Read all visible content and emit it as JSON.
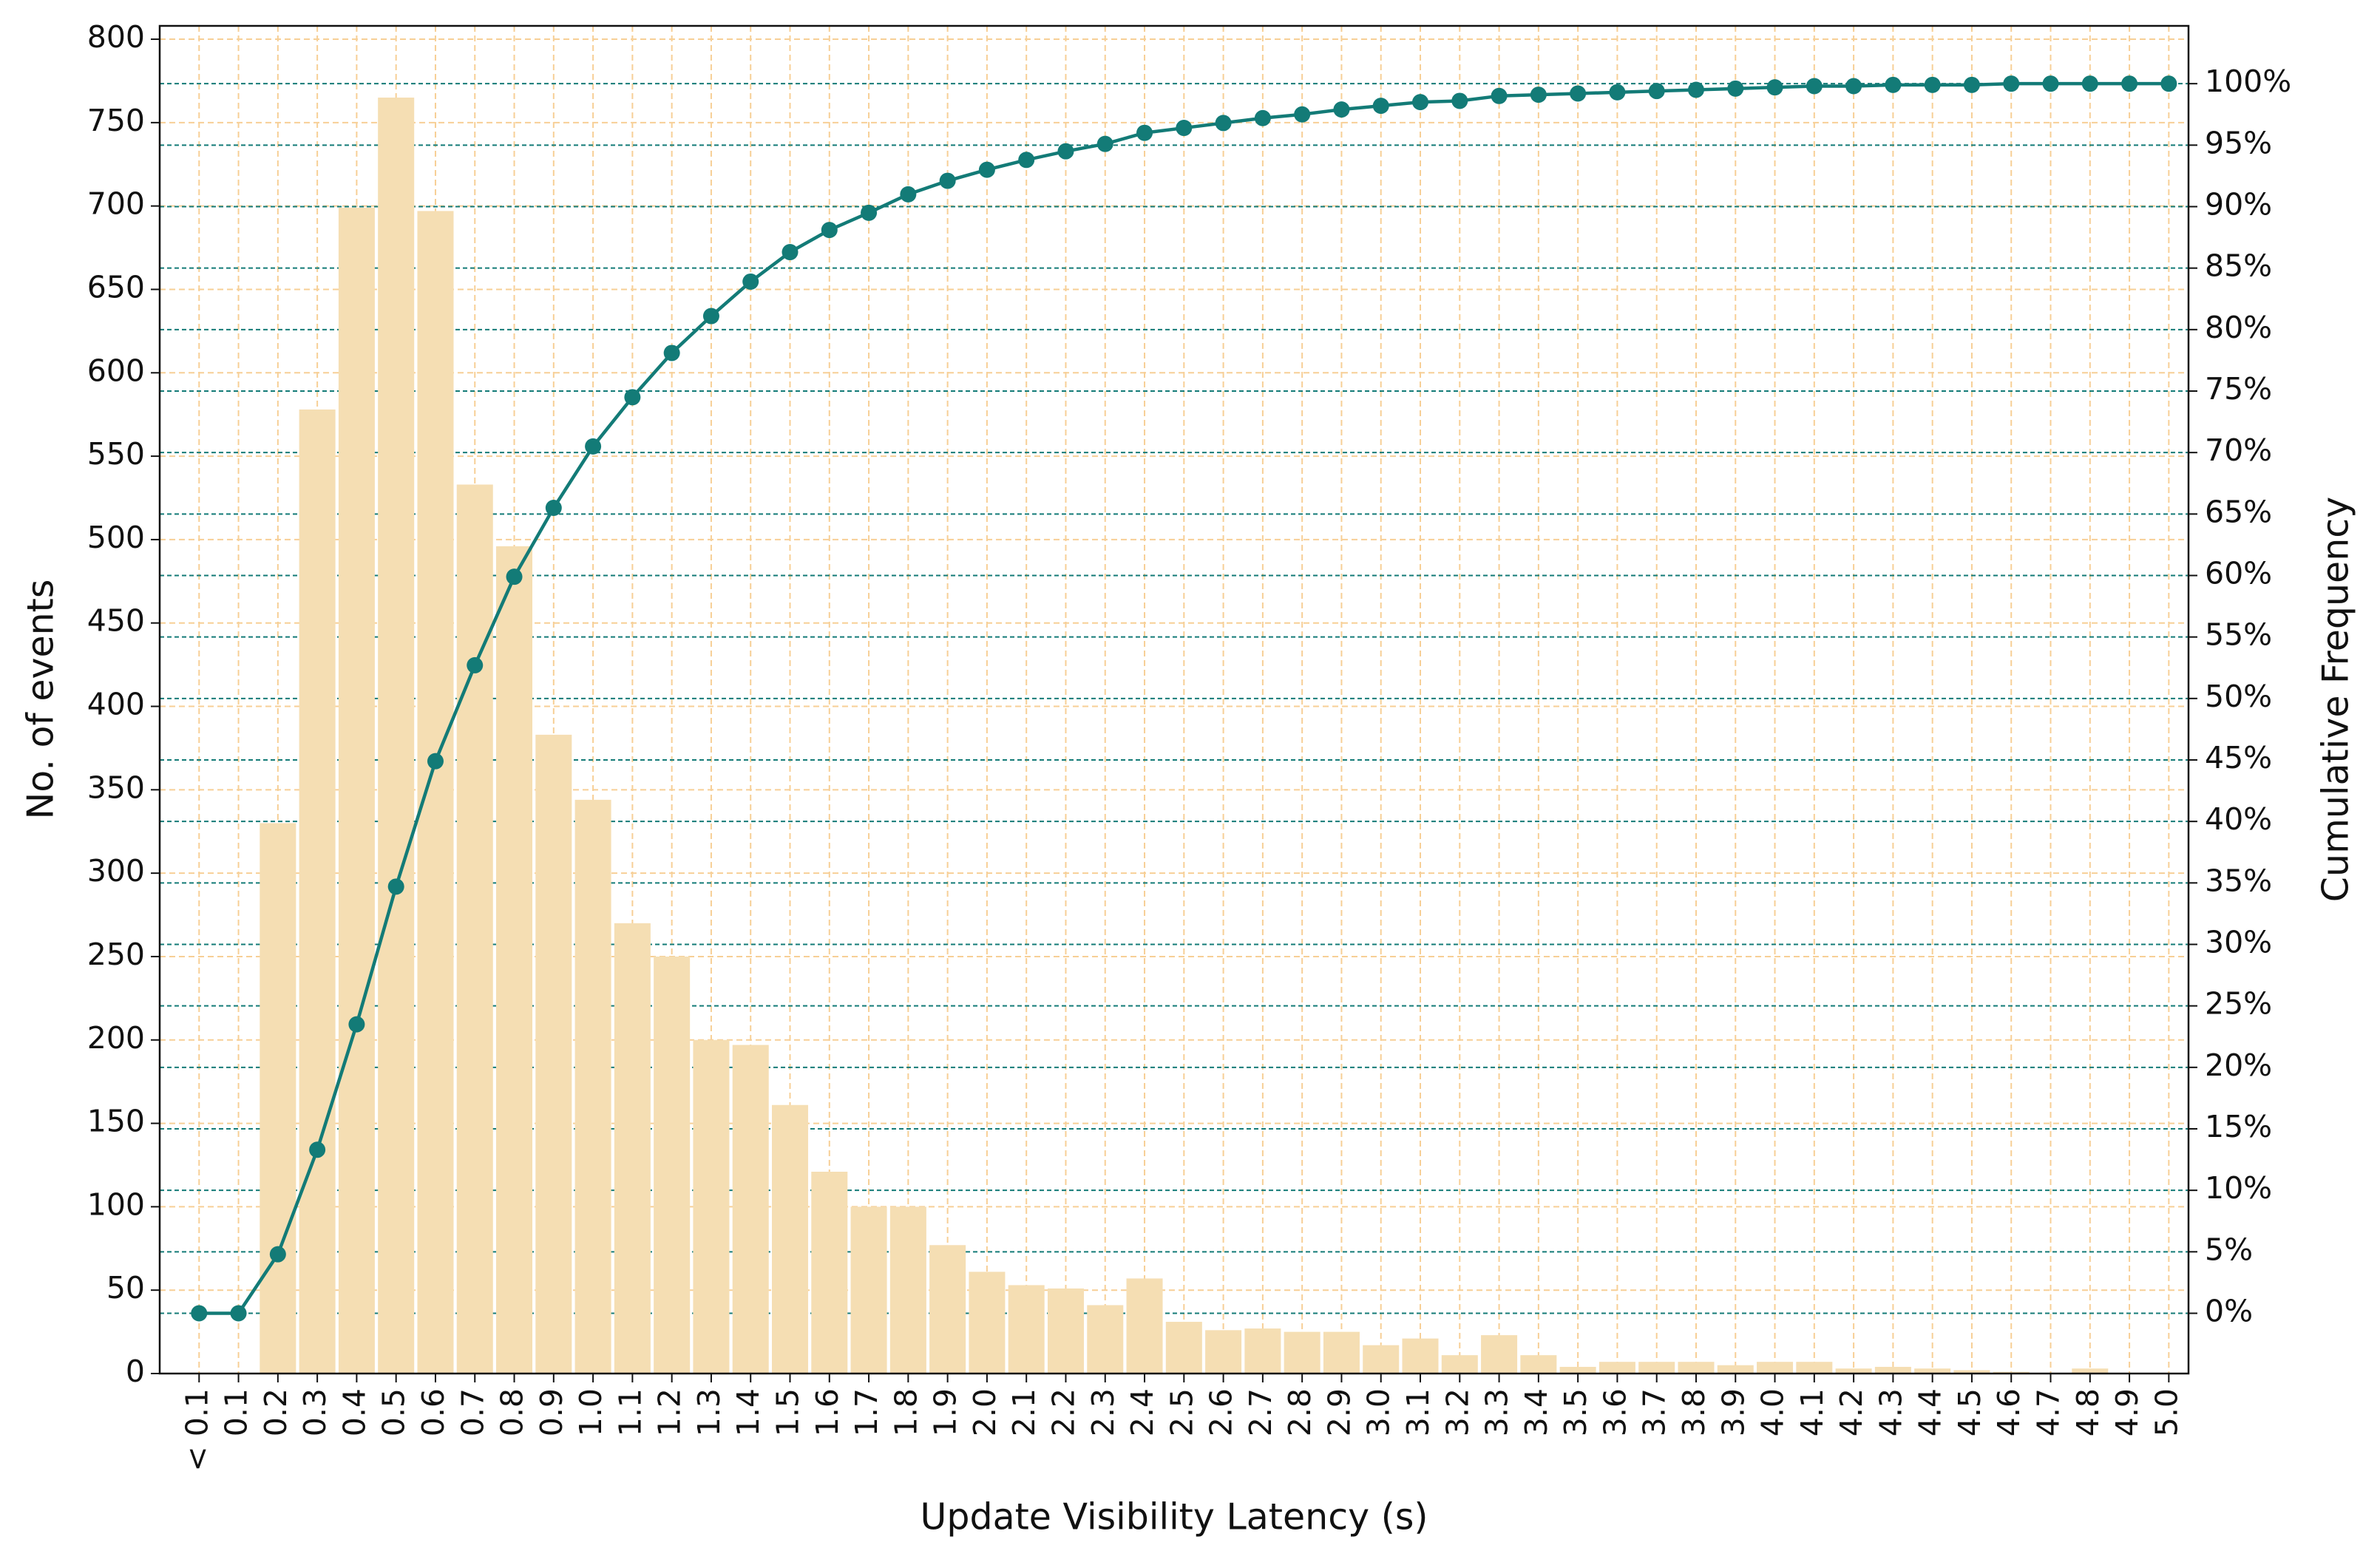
{
  "chart_data": {
    "type": "bar",
    "xlabel": "Update Visibility Latency (s)",
    "ylabel": "No. of events",
    "y2label": "Cumulative Frequency",
    "categories": [
      "< 0.1",
      "0.1",
      "0.2",
      "0.3",
      "0.4",
      "0.5",
      "0.6",
      "0.7",
      "0.8",
      "0.9",
      "1.0",
      "1.1",
      "1.2",
      "1.3",
      "1.4",
      "1.5",
      "1.6",
      "1.7",
      "1.8",
      "1.9",
      "2.0",
      "2.1",
      "2.2",
      "2.3",
      "2.4",
      "2.5",
      "2.6",
      "2.7",
      "2.8",
      "2.9",
      "3.0",
      "3.1",
      "3.2",
      "3.3",
      "3.4",
      "3.5",
      "3.6",
      "3.7",
      "3.8",
      "3.9",
      "4.0",
      "4.1",
      "4.2",
      "4.3",
      "4.4",
      "4.5",
      "4.6",
      "4.7",
      "4.8",
      "4.9",
      "5.0"
    ],
    "series": [
      {
        "type": "bar",
        "color": "#f5deb3",
        "values": [
          0,
          0,
          330,
          578,
          699,
          765,
          697,
          533,
          496,
          383,
          344,
          270,
          250,
          200,
          197,
          161,
          121,
          100,
          100,
          77,
          61,
          53,
          51,
          41,
          57,
          31,
          26,
          27,
          25,
          25,
          17,
          21,
          11,
          23,
          11,
          4,
          7,
          7,
          7,
          5,
          7,
          7,
          3,
          4,
          3,
          2,
          1,
          0,
          3,
          0,
          0
        ]
      },
      {
        "type": "line",
        "axis": "y2",
        "color": "#137b77",
        "values": [
          0,
          0,
          4.8,
          13.3,
          23.5,
          34.7,
          44.9,
          52.7,
          59.9,
          65.5,
          70.5,
          74.5,
          78.1,
          81.1,
          83.9,
          86.3,
          88.1,
          89.5,
          91.0,
          92.1,
          93.0,
          93.8,
          94.5,
          95.1,
          96.0,
          96.4,
          96.8,
          97.2,
          97.5,
          97.9,
          98.2,
          98.5,
          98.6,
          99.0,
          99.1,
          99.2,
          99.3,
          99.4,
          99.5,
          99.6,
          99.7,
          99.8,
          99.8,
          99.9,
          99.9,
          99.9,
          100.0,
          100,
          100,
          100,
          100
        ]
      }
    ],
    "ylim": [
      0,
      808
    ],
    "yticks": [
      0,
      50,
      100,
      150,
      200,
      250,
      300,
      350,
      400,
      450,
      500,
      550,
      600,
      650,
      700,
      750,
      800
    ],
    "y2lim": [
      -4.9,
      104.7
    ],
    "y2ticks": [
      {
        "value": 0,
        "label": "0%"
      },
      {
        "value": 5,
        "label": "5%"
      },
      {
        "value": 10,
        "label": "10%"
      },
      {
        "value": 15,
        "label": "15%"
      },
      {
        "value": 20,
        "label": "20%"
      },
      {
        "value": 25,
        "label": "25%"
      },
      {
        "value": 30,
        "label": "30%"
      },
      {
        "value": 35,
        "label": "35%"
      },
      {
        "value": 40,
        "label": "40%"
      },
      {
        "value": 45,
        "label": "45%"
      },
      {
        "value": 50,
        "label": "50%"
      },
      {
        "value": 55,
        "label": "55%"
      },
      {
        "value": 60,
        "label": "60%"
      },
      {
        "value": 65,
        "label": "65%"
      },
      {
        "value": 70,
        "label": "70%"
      },
      {
        "value": 75,
        "label": "75%"
      },
      {
        "value": 80,
        "label": "80%"
      },
      {
        "value": 85,
        "label": "85%"
      },
      {
        "value": 90,
        "label": "90%"
      },
      {
        "value": 95,
        "label": "95%"
      },
      {
        "value": 100,
        "label": "100%"
      }
    ],
    "grid": true,
    "grid_color": "#f7cf96",
    "y2grid_color": "#137b77"
  }
}
